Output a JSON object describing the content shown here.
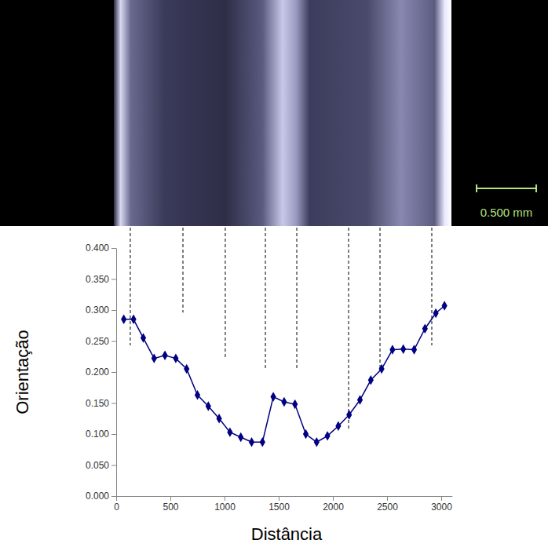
{
  "chart_data": {
    "type": "line",
    "x_label": "Distância",
    "y_label": "Orientação",
    "scale_bar": "0.500 mm",
    "x": [
      70,
      160,
      250,
      350,
      450,
      550,
      650,
      750,
      850,
      950,
      1050,
      1150,
      1250,
      1350,
      1450,
      1550,
      1650,
      1750,
      1850,
      1950,
      2050,
      2150,
      2250,
      2350,
      2450,
      2550,
      2650,
      2750,
      2850,
      2950,
      3030
    ],
    "values": [
      0.285,
      0.285,
      0.255,
      0.222,
      0.227,
      0.222,
      0.205,
      0.163,
      0.145,
      0.125,
      0.103,
      0.095,
      0.087,
      0.087,
      0.16,
      0.152,
      0.148,
      0.1,
      0.087,
      0.097,
      0.113,
      0.131,
      0.155,
      0.187,
      0.205,
      0.236,
      0.237,
      0.236,
      0.27,
      0.295,
      0.307
    ],
    "color": "#000080",
    "marker": "diamond",
    "boundaries": [
      {
        "x": 130,
        "y_end": 0.243
      },
      {
        "x": 616,
        "y_end": 0.296
      },
      {
        "x": 1007,
        "y_end": 0.224
      },
      {
        "x": 1377,
        "y_end": 0.205
      },
      {
        "x": 1667,
        "y_end": 0.205
      },
      {
        "x": 2145,
        "y_end": 0.106
      },
      {
        "x": 2435,
        "y_end": 0.205
      },
      {
        "x": 2913,
        "y_end": 0.243
      }
    ],
    "xlim": [
      0,
      3100
    ],
    "xticks": [
      0,
      500,
      1000,
      1500,
      2000,
      2500,
      3000
    ],
    "ylim": [
      0,
      0.4
    ],
    "yticks": [
      {
        "value": 0,
        "label": "0.000"
      },
      {
        "value": 0.05,
        "label": "0.050"
      },
      {
        "value": 0.1,
        "label": "0.100"
      },
      {
        "value": 0.15,
        "label": "0.150"
      },
      {
        "value": 0.2,
        "label": "0.200"
      },
      {
        "value": 0.25,
        "label": "0.250"
      },
      {
        "value": 0.3,
        "label": "0.300"
      },
      {
        "value": 0.35,
        "label": "0.350"
      },
      {
        "value": 0.4,
        "label": "0.400"
      }
    ],
    "grid": false
  }
}
